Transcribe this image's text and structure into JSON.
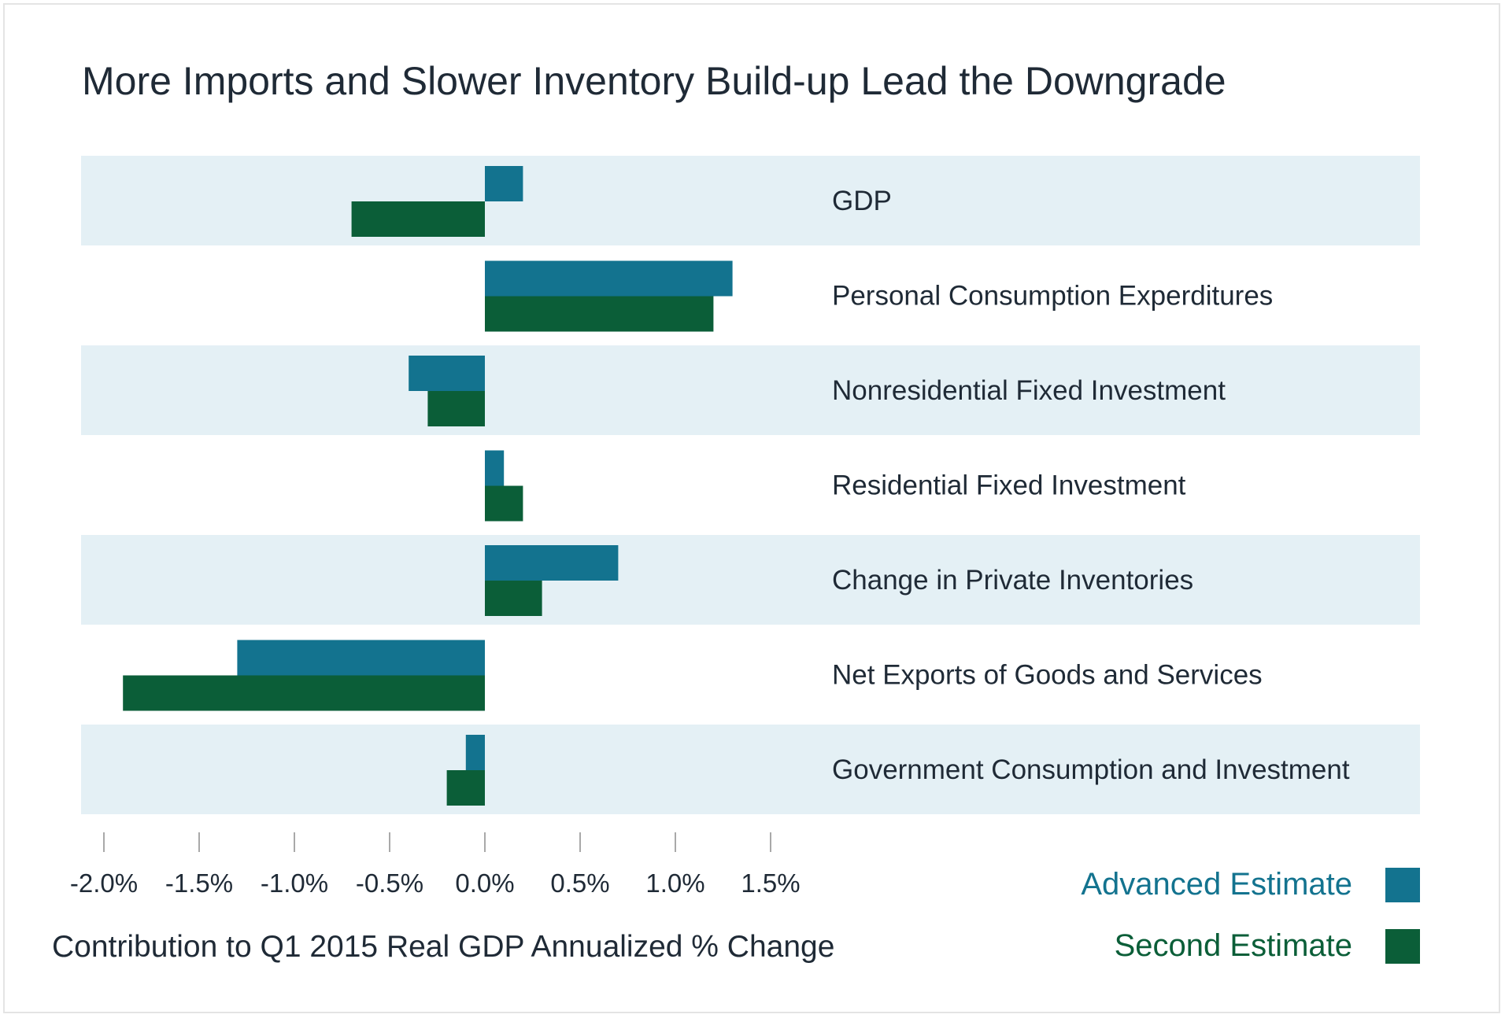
{
  "title": "More Imports and Slower Inventory Build-up Lead the Downgrade",
  "chart_data": {
    "type": "bar",
    "orientation": "horizontal",
    "title": "More Imports and Slower Inventory Build-up Lead the Downgrade",
    "xlabel": "Contribution to Q1 2015 Real GDP Annualized % Change",
    "ylabel": "",
    "categories": [
      "GDP",
      "Personal Consumption Experditures",
      "Nonresidential Fixed Investment",
      "Residential Fixed Investment",
      "Change in Private Inventories",
      "Net Exports of Goods and Services",
      "Government Consumption and Investment"
    ],
    "series": [
      {
        "name": "Advanced Estimate",
        "color": "#13738f",
        "values": [
          0.2,
          1.3,
          -0.4,
          0.1,
          0.7,
          -1.3,
          -0.1
        ]
      },
      {
        "name": "Second Estimate",
        "color": "#0b5e38",
        "values": [
          -0.7,
          1.2,
          -0.3,
          0.2,
          0.3,
          -1.9,
          -0.2
        ]
      }
    ],
    "xlim": [
      -2.0,
      1.5
    ],
    "xticks": [
      -2.0,
      -1.5,
      -1.0,
      -0.5,
      0.0,
      0.5,
      1.0,
      1.5
    ],
    "xtick_labels": [
      "-2.0%",
      "-1.5%",
      "-1.0%",
      "-0.5%",
      "0.0%",
      "0.5%",
      "1.0%",
      "1.5%"
    ],
    "band_color": "#e4f0f5",
    "legend": "bottom-right"
  }
}
